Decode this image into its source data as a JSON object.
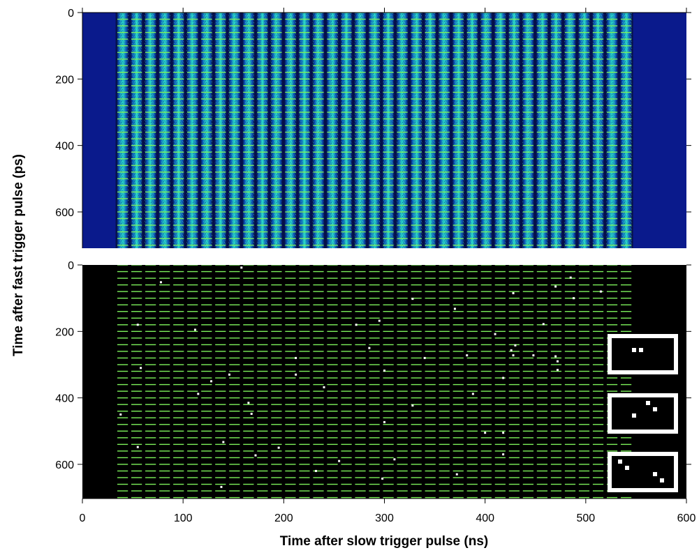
{
  "chart_data": [
    {
      "type": "heatmap",
      "description_role": "top panel: intensity of detected photons",
      "xlabel": "Time after slow trigger pulse (ns)",
      "ylabel": "Time after fast trigger pulse (ps)",
      "xlim": [
        0,
        600
      ],
      "ylim": [
        720,
        0
      ],
      "x_ticks": [
        0,
        100,
        200,
        300,
        400,
        500,
        600
      ],
      "y_ticks": [
        0,
        200,
        400,
        600
      ],
      "y_tick_labels": [
        "0",
        "200",
        "400",
        "600"
      ],
      "stripe_count": 37,
      "stripe_region_x": [
        33,
        547
      ],
      "stripe_period_ns": 14.3,
      "horizontal_marker_period_ps": 20,
      "colors": {
        "background": "#0a1a8c",
        "stripe_edge": "#0d58b8",
        "stripe_core": "#27d6c4",
        "stripe_gap": "#06104a",
        "marker": "#7cf05a"
      }
    },
    {
      "type": "scatter",
      "description_role": "bottom panel: single-photon events",
      "xlabel": "Time after slow trigger pulse (ns)",
      "ylabel": "Time after fast trigger pulse (ps)",
      "xlim": [
        0,
        600
      ],
      "ylim": [
        720,
        0
      ],
      "x_ticks": [
        0,
        100,
        200,
        300,
        400,
        500,
        600
      ],
      "x_tick_labels": [
        "0",
        "100",
        "200",
        "300",
        "400",
        "500",
        "600"
      ],
      "y_ticks": [
        0,
        200,
        400,
        600
      ],
      "y_tick_labels": [
        "0",
        "200",
        "400",
        "600"
      ],
      "grid_lines_region_x": [
        33,
        547
      ],
      "horizontal_marker_period_ps": 20,
      "points": [
        [
          158,
          8
        ],
        [
          78,
          52
        ],
        [
          485,
          38
        ],
        [
          470,
          65
        ],
        [
          488,
          100
        ],
        [
          515,
          80
        ],
        [
          428,
          85
        ],
        [
          328,
          102
        ],
        [
          370,
          132
        ],
        [
          55,
          180
        ],
        [
          112,
          195
        ],
        [
          272,
          180
        ],
        [
          295,
          168
        ],
        [
          458,
          178
        ],
        [
          410,
          208
        ],
        [
          285,
          250
        ],
        [
          430,
          242
        ],
        [
          426,
          257
        ],
        [
          448,
          272
        ],
        [
          428,
          272
        ],
        [
          470,
          275
        ],
        [
          472,
          290
        ],
        [
          382,
          272
        ],
        [
          340,
          280
        ],
        [
          212,
          280
        ],
        [
          58,
          310
        ],
        [
          300,
          318
        ],
        [
          472,
          316
        ],
        [
          418,
          340
        ],
        [
          146,
          330
        ],
        [
          212,
          330
        ],
        [
          128,
          350
        ],
        [
          240,
          368
        ],
        [
          115,
          388
        ],
        [
          388,
          388
        ],
        [
          328,
          423
        ],
        [
          165,
          415
        ],
        [
          168,
          448
        ],
        [
          38,
          450
        ],
        [
          300,
          473
        ],
        [
          400,
          505
        ],
        [
          418,
          505
        ],
        [
          140,
          533
        ],
        [
          55,
          548
        ],
        [
          195,
          550
        ],
        [
          418,
          570
        ],
        [
          172,
          573
        ],
        [
          310,
          585
        ],
        [
          255,
          590
        ],
        [
          232,
          620
        ],
        [
          372,
          630
        ],
        [
          298,
          643
        ],
        [
          138,
          668
        ]
      ],
      "insets": [
        {
          "pixels": [
            [
              2,
              1
            ],
            [
              3,
              1
            ]
          ]
        },
        {
          "pixels": [
            [
              4,
              0
            ],
            [
              5,
              1
            ],
            [
              2,
              2
            ]
          ]
        },
        {
          "pixels": [
            [
              0,
              0
            ],
            [
              1,
              1
            ],
            [
              5,
              2
            ],
            [
              6,
              3
            ]
          ]
        }
      ],
      "colors": {
        "background": "#000000",
        "marker": "#7cf05a",
        "point": "#ffffff",
        "inset_border": "#ffffff"
      }
    }
  ],
  "axes": {
    "xlabel": "Time after slow trigger pulse (ns)",
    "ylabel": "Time after fast trigger pulse (ps)"
  }
}
